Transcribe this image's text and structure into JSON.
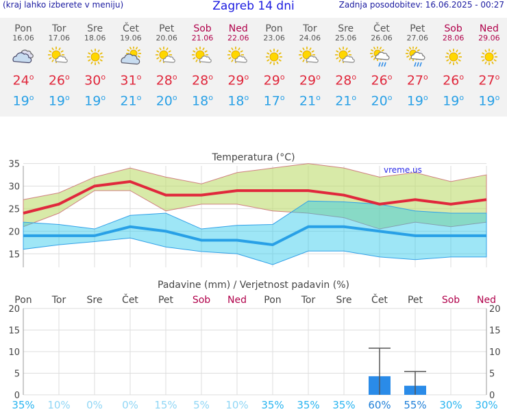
{
  "header": {
    "left": "(kraj lahko izberete v meniju)",
    "title": "Zagreb 14 dni",
    "right": "Zadnja posodobitev: 16.06.2025 - 00:27"
  },
  "colors": {
    "tmax": "#e0283c",
    "tmin": "#28a0e6",
    "weekend": "#b0004a",
    "precip_bar": "#2a8be8",
    "prob": "#28c8f0"
  },
  "days": [
    {
      "name": "Pon",
      "date": "16.06",
      "weekend": false,
      "icon": "cloudy-icon",
      "tmax": "24",
      "tmin": "19",
      "prob": "35%"
    },
    {
      "name": "Tor",
      "date": "17.06",
      "weekend": false,
      "icon": "sun-cloud-icon",
      "tmax": "26",
      "tmin": "19",
      "prob": "10%"
    },
    {
      "name": "Sre",
      "date": "18.06",
      "weekend": false,
      "icon": "sun-icon",
      "tmax": "30",
      "tmin": "19",
      "prob": "0%"
    },
    {
      "name": "Čet",
      "date": "19.06",
      "weekend": false,
      "icon": "cloud-sun-icon",
      "tmax": "31",
      "tmin": "21",
      "prob": "0%"
    },
    {
      "name": "Pet",
      "date": "20.06",
      "weekend": false,
      "icon": "sun-cloud-icon",
      "tmax": "28",
      "tmin": "20",
      "prob": "15%"
    },
    {
      "name": "Sob",
      "date": "21.06",
      "weekend": true,
      "icon": "sun-cloud-icon",
      "tmax": "28",
      "tmin": "18",
      "prob": "5%"
    },
    {
      "name": "Ned",
      "date": "22.06",
      "weekend": true,
      "icon": "sun-cloud-icon",
      "tmax": "29",
      "tmin": "18",
      "prob": "10%"
    },
    {
      "name": "Pon",
      "date": "23.06",
      "weekend": false,
      "icon": "sun-icon",
      "tmax": "29",
      "tmin": "17",
      "prob": "35%"
    },
    {
      "name": "Tor",
      "date": "24.06",
      "weekend": false,
      "icon": "sun-cloud-icon",
      "tmax": "29",
      "tmin": "21",
      "prob": "35%"
    },
    {
      "name": "Sre",
      "date": "25.06",
      "weekend": false,
      "icon": "sun-cloud-icon",
      "tmax": "28",
      "tmin": "21",
      "prob": "35%"
    },
    {
      "name": "Čet",
      "date": "26.06",
      "weekend": false,
      "icon": "sun-rain-icon",
      "tmax": "26",
      "tmin": "20",
      "prob": "60%"
    },
    {
      "name": "Pet",
      "date": "27.06",
      "weekend": false,
      "icon": "sun-rain-icon",
      "tmax": "27",
      "tmin": "19",
      "prob": "55%"
    },
    {
      "name": "Sob",
      "date": "28.06",
      "weekend": true,
      "icon": "sun-icon",
      "tmax": "26",
      "tmin": "19",
      "prob": "30%"
    },
    {
      "name": "Ned",
      "date": "29.06",
      "weekend": true,
      "icon": "sun-icon",
      "tmax": "27",
      "tmin": "19",
      "prob": "30%"
    }
  ],
  "chart_data": [
    {
      "type": "line",
      "title": "Temperatura (°C)",
      "watermark": "vreme.us",
      "ylim": [
        12,
        36
      ],
      "yticks": [
        15,
        20,
        25,
        30,
        35
      ],
      "grid": true,
      "x": [
        0,
        1,
        2,
        3,
        4,
        5,
        6,
        7,
        8,
        9,
        10,
        11,
        12,
        13
      ],
      "series": [
        {
          "role": "tmax",
          "values": [
            24,
            26,
            30,
            31,
            28,
            28,
            29,
            29,
            29,
            28,
            26,
            27,
            26,
            27
          ]
        },
        {
          "role": "tmax-range-upper",
          "values": [
            27,
            28.5,
            32,
            34,
            32,
            30.5,
            33,
            34,
            35,
            34,
            32,
            33,
            31,
            32.5
          ]
        },
        {
          "role": "tmax-range-lower",
          "values": [
            21,
            24,
            29,
            29,
            24.5,
            26,
            26,
            24.5,
            24,
            23,
            20.5,
            22,
            21,
            22
          ]
        },
        {
          "role": "tmin",
          "values": [
            19,
            19,
            19,
            21,
            20,
            18,
            18,
            17,
            21,
            21,
            20,
            19,
            19,
            19
          ]
        },
        {
          "role": "tmin-range-upper",
          "values": [
            22,
            21.5,
            20.5,
            23.5,
            24,
            20.5,
            21.3,
            21.5,
            26.7,
            26.5,
            26,
            24.5,
            24,
            24
          ]
        },
        {
          "role": "tmin-range-lower",
          "values": [
            16,
            17,
            17.7,
            18.5,
            16.5,
            15.5,
            15,
            12.6,
            15.6,
            15.6,
            14.3,
            13.7,
            14.3,
            14.3
          ]
        }
      ]
    },
    {
      "type": "bar",
      "title": "Padavine (mm) / Verjetnost padavin (%)",
      "ylim": [
        0,
        20
      ],
      "yticks": [
        0,
        5,
        10,
        15,
        20
      ],
      "grid": true,
      "categories": [
        "Pon",
        "Tor",
        "Sre",
        "Čet",
        "Pet",
        "Sob",
        "Ned",
        "Pon",
        "Tor",
        "Sre",
        "Čet",
        "Pet",
        "Sob",
        "Ned"
      ],
      "values": [
        0,
        0,
        0,
        0,
        0,
        0,
        0,
        0,
        0,
        0,
        4.3,
        2.1,
        0,
        0
      ],
      "error_max": [
        0,
        0,
        0,
        0,
        0,
        0,
        0,
        0,
        0,
        0,
        10.8,
        5.4,
        0,
        0
      ],
      "probability": [
        "35%",
        "10%",
        "0%",
        "0%",
        "15%",
        "5%",
        "10%",
        "35%",
        "35%",
        "35%",
        "60%",
        "55%",
        "30%",
        "30%"
      ]
    }
  ]
}
